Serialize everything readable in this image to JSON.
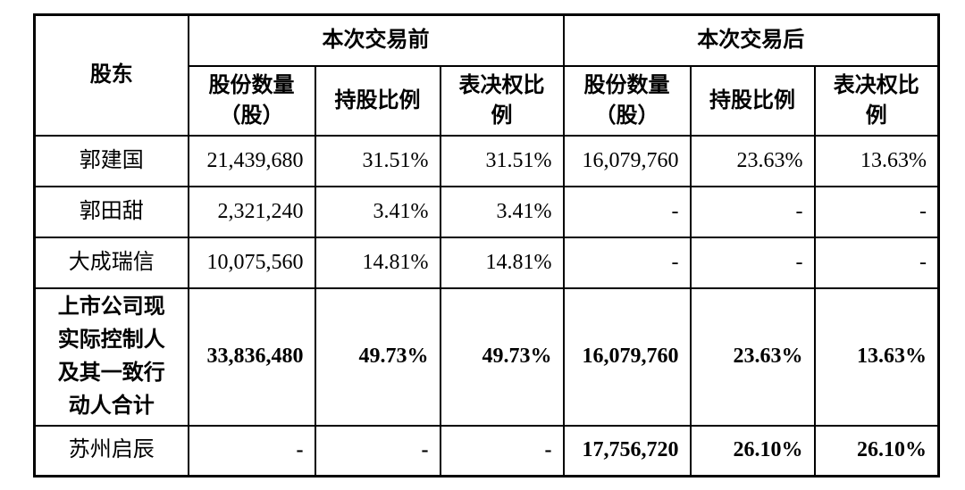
{
  "page": {
    "background_color": "#ffffff",
    "text_color": "#000000",
    "border_color": "#000000"
  },
  "table": {
    "shareholder_header": "股东",
    "group_headers": {
      "before": "本次交易前",
      "after": "本次交易后"
    },
    "sub_headers": {
      "shares": "股份数量\n（股）",
      "holding": "持股比例",
      "voting": "表决权比\n例"
    },
    "rows": [
      {
        "name": "郭建国",
        "name_bold": false,
        "values_bold": false,
        "before": [
          "21,439,680",
          "31.51%",
          "31.51%"
        ],
        "after": [
          "16,079,760",
          "23.63%",
          "13.63%"
        ]
      },
      {
        "name": "郭田甜",
        "name_bold": false,
        "values_bold": false,
        "before": [
          "2,321,240",
          "3.41%",
          "3.41%"
        ],
        "after": [
          "-",
          "-",
          "-"
        ]
      },
      {
        "name": "大成瑞信",
        "name_bold": false,
        "values_bold": false,
        "before": [
          "10,075,560",
          "14.81%",
          "14.81%"
        ],
        "after": [
          "-",
          "-",
          "-"
        ]
      },
      {
        "name": "上市公司现\n实际控制人\n及其一致行\n动人合计",
        "name_bold": true,
        "values_bold": true,
        "before": [
          "33,836,480",
          "49.73%",
          "49.73%"
        ],
        "after": [
          "16,079,760",
          "23.63%",
          "13.63%"
        ]
      },
      {
        "name": "苏州启辰",
        "name_bold": false,
        "values_bold": true,
        "before": [
          "-",
          "-",
          "-"
        ],
        "after": [
          "17,756,720",
          "26.10%",
          "26.10%"
        ]
      }
    ]
  }
}
